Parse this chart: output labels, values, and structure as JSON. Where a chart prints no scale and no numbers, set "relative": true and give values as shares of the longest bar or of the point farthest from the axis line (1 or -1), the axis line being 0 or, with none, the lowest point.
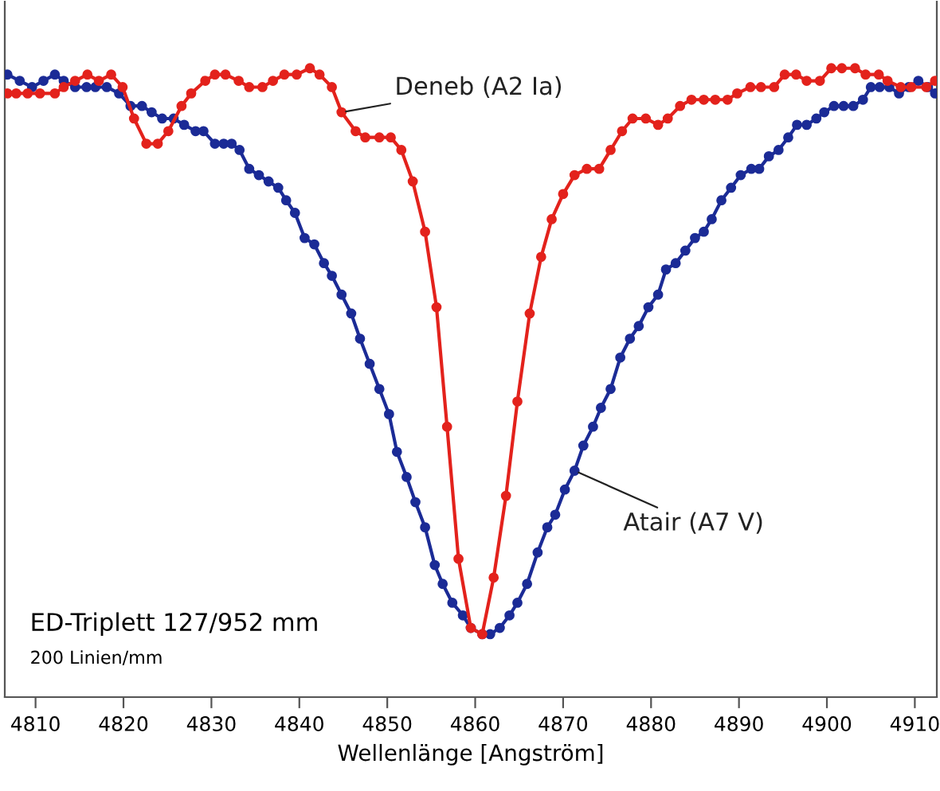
{
  "chart_data": {
    "type": "line",
    "xlabel": "Wellenlänge [Angström]",
    "relative": true,
    "marker": "circle",
    "line_style": "solid",
    "grid": false,
    "legend": false,
    "xlim": [
      4806.5,
      4912.5
    ],
    "xticks": [
      4810,
      4820,
      4830,
      4840,
      4850,
      4860,
      4870,
      4880,
      4890,
      4900,
      4910
    ],
    "annotations": [
      "ED-Triplett 127/952 mm",
      "200 Linien/mm"
    ],
    "series": [
      {
        "name": "Deneb (A2 Ia)",
        "color": "#e3221c",
        "x": [
          4806.8,
          4807.8,
          4809.1,
          4810.5,
          4812.2,
          4813.2,
          4814.5,
          4815.9,
          4817.2,
          4818.6,
          4819.9,
          4821.2,
          4822.6,
          4823.9,
          4825.1,
          4826.6,
          4827.7,
          4829.3,
          4830.4,
          4831.6,
          4833.1,
          4834.3,
          4835.8,
          4837.0,
          4838.3,
          4839.7,
          4841.2,
          4842.3,
          4843.7,
          4844.8,
          4846.4,
          4847.5,
          4849.1,
          4850.4,
          4851.6,
          4852.9,
          4854.3,
          4855.6,
          4856.8,
          4858.1,
          4859.5,
          4860.8,
          4862.1,
          4863.5,
          4864.8,
          4866.2,
          4867.5,
          4868.7,
          4870.0,
          4871.3,
          4872.7,
          4874.1,
          4875.4,
          4876.7,
          4877.9,
          4879.4,
          4880.8,
          4881.9,
          4883.3,
          4884.6,
          4886.0,
          4887.3,
          4888.7,
          4889.8,
          4891.3,
          4892.5,
          4894.0,
          4895.2,
          4896.5,
          4897.7,
          4899.2,
          4900.5,
          4901.7,
          4903.2,
          4904.4,
          4905.9,
          4906.9,
          4908.4,
          4909.6,
          4911.3,
          4912.3
        ],
        "values": [
          0.96,
          0.96,
          0.96,
          0.96,
          0.96,
          0.97,
          0.98,
          0.99,
          0.98,
          0.99,
          0.97,
          0.92,
          0.88,
          0.88,
          0.9,
          0.94,
          0.96,
          0.98,
          0.99,
          0.99,
          0.98,
          0.97,
          0.97,
          0.98,
          0.99,
          0.99,
          1.0,
          0.99,
          0.97,
          0.93,
          0.9,
          0.89,
          0.89,
          0.89,
          0.87,
          0.82,
          0.74,
          0.62,
          0.43,
          0.22,
          0.11,
          0.1,
          0.19,
          0.32,
          0.47,
          0.61,
          0.7,
          0.76,
          0.8,
          0.83,
          0.84,
          0.84,
          0.87,
          0.9,
          0.92,
          0.92,
          0.91,
          0.92,
          0.94,
          0.95,
          0.95,
          0.95,
          0.95,
          0.96,
          0.97,
          0.97,
          0.97,
          0.99,
          0.99,
          0.98,
          0.98,
          1.0,
          1.0,
          1.0,
          0.99,
          0.99,
          0.98,
          0.97,
          0.97,
          0.97,
          0.98
        ]
      },
      {
        "name": "Atair (A7 V)",
        "color": "#1b2b96",
        "x": [
          4806.8,
          4808.2,
          4809.6,
          4810.9,
          4812.2,
          4813.2,
          4814.5,
          4815.8,
          4816.8,
          4818.1,
          4819.5,
          4820.8,
          4822.1,
          4823.2,
          4824.4,
          4825.7,
          4826.9,
          4828.2,
          4829.1,
          4830.4,
          4831.4,
          4832.3,
          4833.2,
          4834.3,
          4835.4,
          4836.5,
          4837.6,
          4838.5,
          4839.5,
          4840.6,
          4841.7,
          4842.8,
          4843.7,
          4844.8,
          4845.9,
          4846.9,
          4848.0,
          4849.1,
          4850.2,
          4851.1,
          4852.2,
          4853.2,
          4854.3,
          4855.4,
          4856.3,
          4857.4,
          4858.6,
          4859.5,
          4860.8,
          4861.7,
          4862.8,
          4863.9,
          4864.8,
          4865.9,
          4867.1,
          4868.2,
          4869.1,
          4870.2,
          4871.3,
          4872.3,
          4873.4,
          4874.3,
          4875.4,
          4876.5,
          4877.6,
          4878.6,
          4879.7,
          4880.8,
          4881.7,
          4882.8,
          4883.9,
          4885.0,
          4886.0,
          4886.9,
          4888.0,
          4889.1,
          4890.2,
          4891.4,
          4892.3,
          4893.4,
          4894.5,
          4895.6,
          4896.6,
          4897.7,
          4898.8,
          4899.7,
          4900.8,
          4901.9,
          4903.0,
          4904.1,
          4905.0,
          4906.0,
          4907.1,
          4908.2,
          4909.3,
          4910.4,
          4911.5,
          4912.3
        ],
        "values": [
          0.99,
          0.98,
          0.97,
          0.98,
          0.99,
          0.98,
          0.97,
          0.97,
          0.97,
          0.97,
          0.96,
          0.94,
          0.94,
          0.93,
          0.92,
          0.92,
          0.91,
          0.9,
          0.9,
          0.88,
          0.88,
          0.88,
          0.87,
          0.84,
          0.83,
          0.82,
          0.81,
          0.79,
          0.77,
          0.73,
          0.72,
          0.69,
          0.67,
          0.64,
          0.61,
          0.57,
          0.53,
          0.49,
          0.45,
          0.39,
          0.35,
          0.31,
          0.27,
          0.21,
          0.18,
          0.15,
          0.13,
          0.11,
          0.1,
          0.1,
          0.11,
          0.13,
          0.15,
          0.18,
          0.23,
          0.27,
          0.29,
          0.33,
          0.36,
          0.4,
          0.43,
          0.46,
          0.49,
          0.54,
          0.57,
          0.59,
          0.62,
          0.64,
          0.68,
          0.69,
          0.71,
          0.73,
          0.74,
          0.76,
          0.79,
          0.81,
          0.83,
          0.84,
          0.84,
          0.86,
          0.87,
          0.89,
          0.91,
          0.91,
          0.92,
          0.93,
          0.94,
          0.94,
          0.94,
          0.95,
          0.97,
          0.97,
          0.97,
          0.96,
          0.97,
          0.98,
          0.97,
          0.96
        ]
      }
    ]
  }
}
